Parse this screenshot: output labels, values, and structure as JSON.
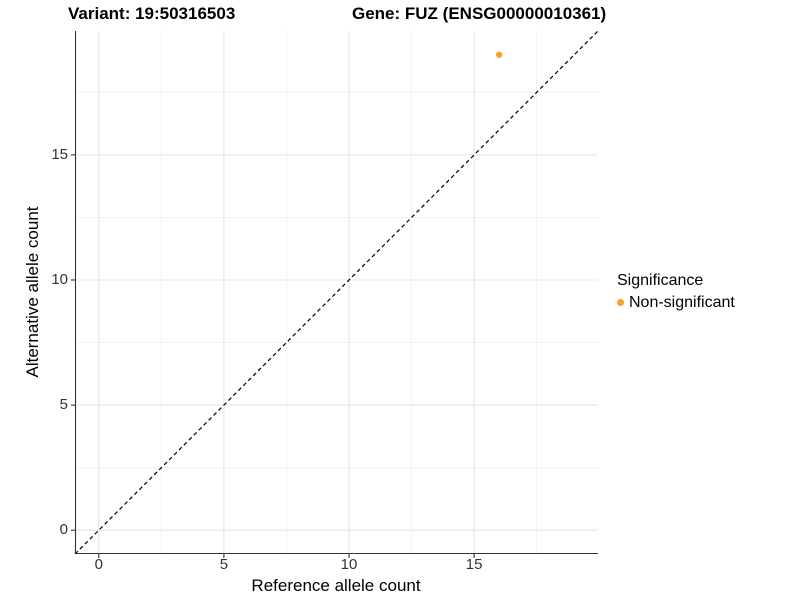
{
  "figure": {
    "title_left": "Variant: 19:50316503",
    "title_right": "Gene: FUZ (ENSG00000010361)"
  },
  "axes": {
    "x": {
      "label": "Reference allele count",
      "tick_labels": [
        "0",
        "5",
        "10",
        "15"
      ]
    },
    "y": {
      "label": "Alternative allele count",
      "tick_labels": [
        "0",
        "5",
        "10",
        "15"
      ]
    }
  },
  "legend": {
    "title": "Significance",
    "items": [
      {
        "label": "Non-significant",
        "color": "#F9A02B"
      }
    ]
  },
  "colors": {
    "point": "#F9A02B",
    "axis_line": "#333333",
    "tick_mark": "#333333",
    "grid_major": "#E4E4E4",
    "grid_minor": "#EFEFEF",
    "reference_line": "#000000",
    "background": "#FFFFFF"
  },
  "chart_data": {
    "type": "scatter",
    "title": "Variant: 19:50316503 / Gene: FUZ (ENSG00000010361)",
    "xlabel": "Reference allele count",
    "ylabel": "Alternative allele count",
    "xlim": [
      -0.95,
      19.95
    ],
    "ylim": [
      -0.95,
      19.95
    ],
    "x_major_ticks": [
      0,
      5,
      10,
      15
    ],
    "y_major_ticks": [
      0,
      5,
      10,
      15
    ],
    "x_minor_ticks": [
      2.5,
      7.5,
      12.5,
      17.5
    ],
    "y_minor_ticks": [
      2.5,
      7.5,
      12.5,
      17.5
    ],
    "grid": true,
    "legend_position": "right",
    "series": [
      {
        "name": "Non-significant",
        "color": "#F9A02B",
        "marker": "circle",
        "points": [
          {
            "x": 16,
            "y": 19
          }
        ]
      }
    ],
    "reference_line": {
      "slope": 1,
      "intercept": 0,
      "style": "dashed",
      "color": "#000000"
    }
  }
}
